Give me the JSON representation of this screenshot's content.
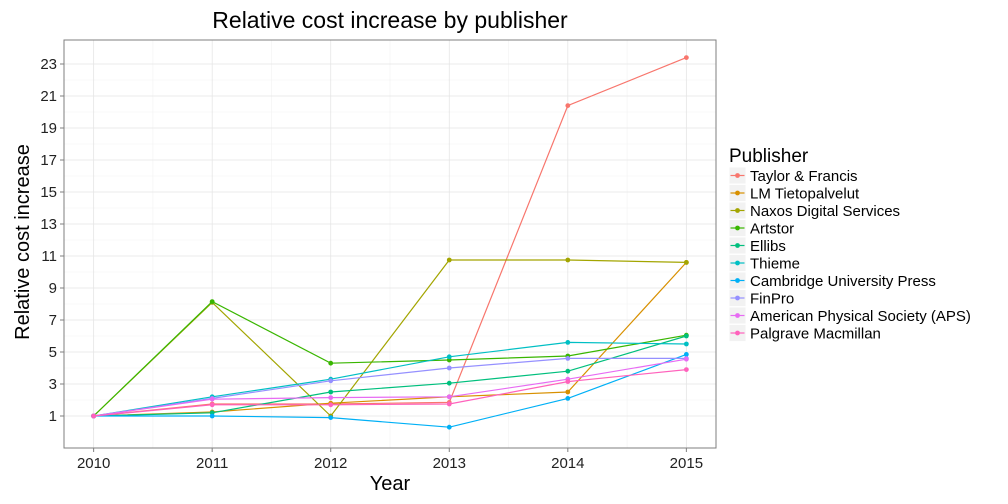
{
  "chart_data": {
    "type": "line",
    "title": "Relative cost increase by publisher",
    "xlabel": "Year",
    "ylabel": "Relative cost increase",
    "x": [
      2010,
      2011,
      2012,
      2013,
      2014,
      2015
    ],
    "xlim": [
      2009.75,
      2015.25
    ],
    "ylim": [
      -1.0,
      24.5
    ],
    "yticks": [
      1,
      3,
      5,
      7,
      9,
      11,
      13,
      15,
      17,
      19,
      21,
      23
    ],
    "grid": true,
    "legend_title": "Publisher",
    "legend_position": "right",
    "series": [
      {
        "name": "Taylor & Francis",
        "color": "#F8766D",
        "values": [
          1.0,
          1.75,
          1.75,
          1.85,
          20.4,
          23.4
        ]
      },
      {
        "name": "LM Tietopalvelut",
        "color": "#D89000",
        "values": [
          1.0,
          1.25,
          1.8,
          2.2,
          2.5,
          10.6
        ]
      },
      {
        "name": "Naxos Digital Services",
        "color": "#A3A500",
        "values": [
          1.0,
          8.1,
          1.0,
          10.75,
          10.75,
          10.6
        ]
      },
      {
        "name": "Artstor",
        "color": "#39B600",
        "values": [
          1.0,
          8.15,
          4.3,
          4.5,
          4.75,
          6.05
        ]
      },
      {
        "name": "Ellibs",
        "color": "#00BF7D",
        "values": [
          1.0,
          1.2,
          2.5,
          3.05,
          3.8,
          6.0
        ]
      },
      {
        "name": "Thieme",
        "color": "#00BFC4",
        "values": [
          1.0,
          2.2,
          3.3,
          4.7,
          5.6,
          5.5
        ]
      },
      {
        "name": "Cambridge University Press",
        "color": "#00B0F6",
        "values": [
          1.0,
          1.0,
          0.9,
          0.3,
          2.1,
          4.85
        ]
      },
      {
        "name": "FinPro",
        "color": "#9590FF",
        "values": [
          1.0,
          2.1,
          3.2,
          4.0,
          4.6,
          4.6
        ]
      },
      {
        "name": "American Physical Society (APS)",
        "color": "#E76BF3",
        "values": [
          1.0,
          2.05,
          2.15,
          2.2,
          3.3,
          4.55
        ]
      },
      {
        "name": "Palgrave Macmillan",
        "color": "#FF62BC",
        "values": [
          1.0,
          1.7,
          1.7,
          1.75,
          3.15,
          3.9
        ]
      }
    ]
  }
}
